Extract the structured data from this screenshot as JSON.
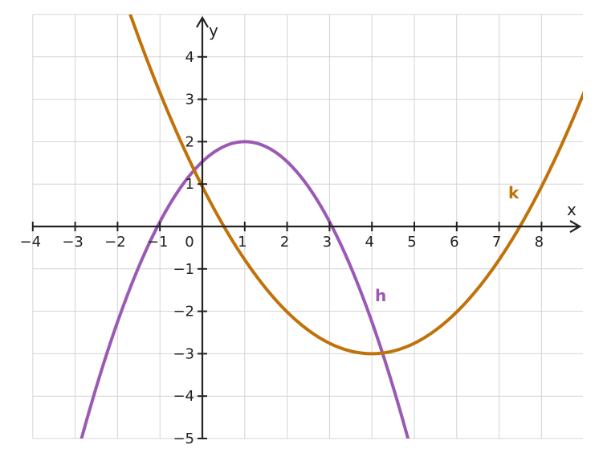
{
  "chart_data": {
    "type": "line",
    "xlabel": "x",
    "ylabel": "y",
    "xlim": [
      -4,
      9
    ],
    "ylim": [
      -5,
      5
    ],
    "x_ticks": [
      -4,
      -3,
      -2,
      -1,
      0,
      1,
      2,
      3,
      4,
      5,
      6,
      7,
      8
    ],
    "y_ticks": [
      -5,
      -4,
      -3,
      -2,
      -1,
      1,
      2,
      3,
      4
    ],
    "x_tick_labels": [
      "−4",
      "−3",
      "−2",
      "−1",
      "0",
      "1",
      "2",
      "3",
      "4",
      "5",
      "6",
      "7",
      "8"
    ],
    "y_tick_labels": [
      "−5",
      "−4",
      "−3",
      "−2",
      "−1",
      "1",
      "2",
      "3",
      "4"
    ],
    "grid": true,
    "series": [
      {
        "name": "h",
        "color": "#9b59b6",
        "shape": "downward parabola",
        "vertex": [
          1,
          2
        ],
        "x": [
          -2.85,
          -2,
          -1,
          0,
          1,
          2,
          3,
          4,
          4.75
        ],
        "y": [
          -5,
          -2.5,
          0,
          1.5,
          2,
          1.5,
          0,
          -2.5,
          -5
        ]
      },
      {
        "name": "k",
        "color": "#c0720a",
        "shape": "upward parabola",
        "vertex": [
          4,
          -3
        ],
        "x": [
          -1.7,
          -1,
          0,
          0.5,
          2,
          4,
          6,
          7.5,
          8,
          9
        ],
        "y": [
          5,
          3.25,
          1,
          0,
          -2,
          -3,
          -2,
          0,
          1,
          3.25
        ]
      }
    ]
  }
}
